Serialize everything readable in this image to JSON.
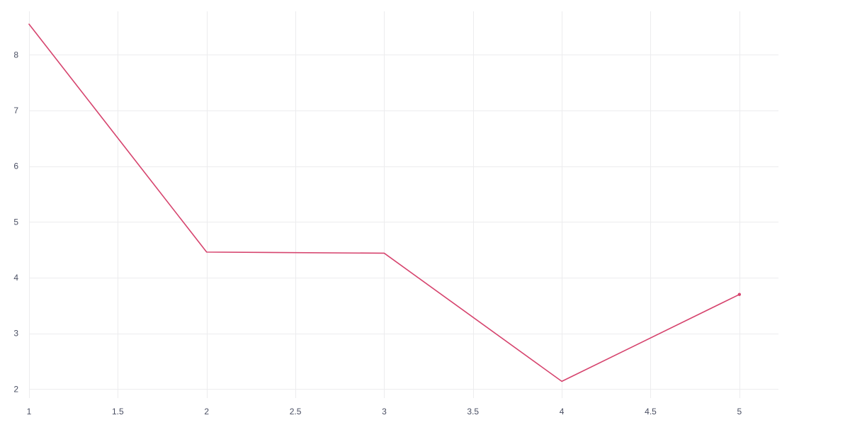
{
  "chart_data": {
    "type": "line",
    "title": "",
    "xlabel": "",
    "ylabel": "",
    "x": [
      1,
      2,
      3,
      4,
      5
    ],
    "series": [
      {
        "values": [
          8.55,
          4.46,
          4.44,
          2.14,
          3.7
        ],
        "color": "#d6446e"
      }
    ],
    "xlim": [
      1,
      5.22
    ],
    "ylim": [
      1.84,
      8.78
    ],
    "xticks": [
      1,
      1.5,
      2,
      2.5,
      3,
      3.5,
      4,
      4.5,
      5
    ],
    "xtick_labels": [
      "1",
      "1.5",
      "2",
      "2.5",
      "3",
      "3.5",
      "4",
      "4.5",
      "5"
    ],
    "yticks": [
      2,
      3,
      4,
      5,
      6,
      7,
      8
    ],
    "ytick_labels": [
      "2",
      "3",
      "4",
      "5",
      "6",
      "7",
      "8"
    ],
    "grid": true,
    "last_point_marker": true
  }
}
